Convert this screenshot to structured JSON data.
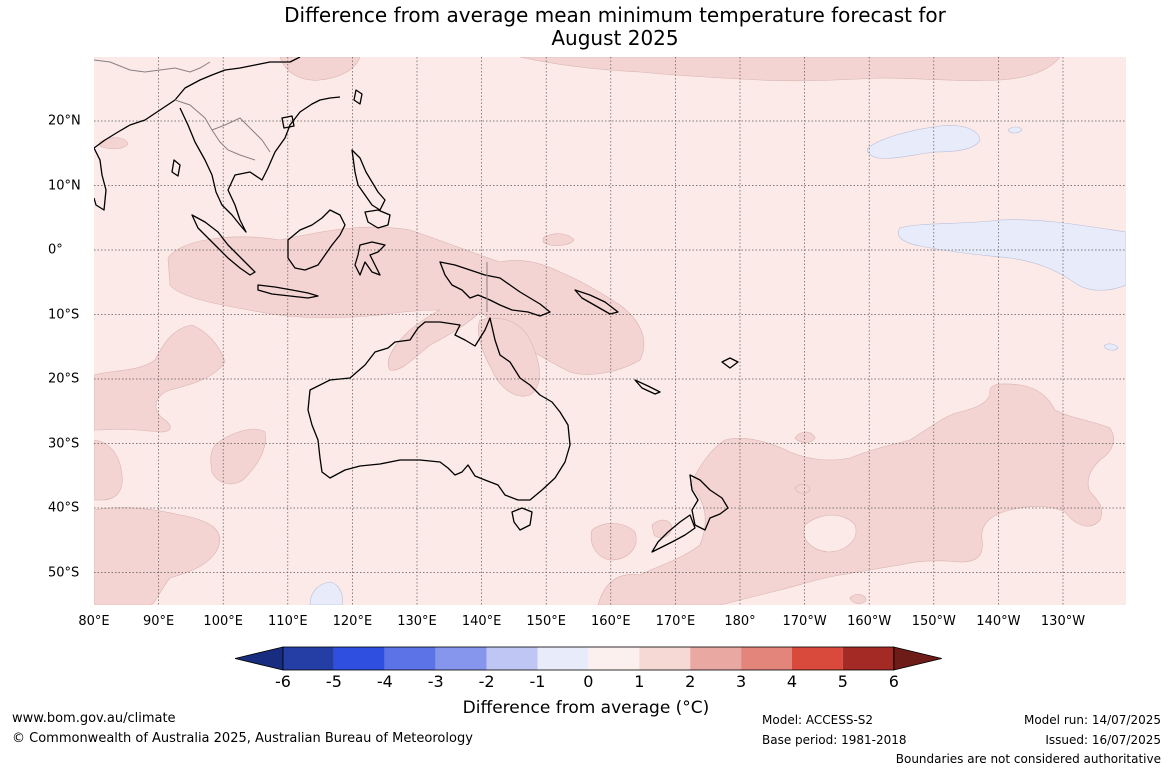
{
  "title": {
    "line1": "Difference from average mean minimum temperature forecast for",
    "line2": "August 2025"
  },
  "map": {
    "longitude_labels": [
      "80°E",
      "90°E",
      "100°E",
      "110°E",
      "120°E",
      "130°E",
      "140°E",
      "150°E",
      "160°E",
      "170°E",
      "180°",
      "170°W",
      "160°W",
      "150°W",
      "140°W",
      "130°W"
    ],
    "latitude_labels": [
      "20°N",
      "10°N",
      "0°",
      "10°S",
      "20°S",
      "30°S",
      "40°S",
      "50°S"
    ],
    "background_color": "#fbeae8",
    "anomaly_0_1_color": "#fbeae8",
    "anomaly_1_2_color": "#f4d4d2",
    "anomaly_neg1_0_color": "#e8ecfa",
    "coastline_color": "#000000",
    "border_color": "#8a7f83"
  },
  "colorbar": {
    "ticks": [
      "-6",
      "-5",
      "-4",
      "-3",
      "-2",
      "-1",
      "0",
      "1",
      "2",
      "3",
      "4",
      "5",
      "6"
    ],
    "colors": [
      "#192d80",
      "#243ea6",
      "#2e4fe0",
      "#5b73e6",
      "#8596ec",
      "#c0c6f3",
      "#e8ebfa",
      "#fcf0ee",
      "#f6d8d5",
      "#eaa8a2",
      "#e4857b",
      "#da4a3c",
      "#a42a26",
      "#6e1c17"
    ],
    "label": "Difference from average (°C)"
  },
  "footer": {
    "website": "www.bom.gov.au/climate",
    "copyright": "© Commonwealth of Australia 2025, Australian Bureau of Meteorology",
    "model": "Model: ACCESS-S2",
    "base_period": "Base period: 1981-2018",
    "model_run": "Model run: 14/07/2025",
    "issued": "Issued: 16/07/2025",
    "disclaimer": "Boundaries are not considered authoritative"
  }
}
